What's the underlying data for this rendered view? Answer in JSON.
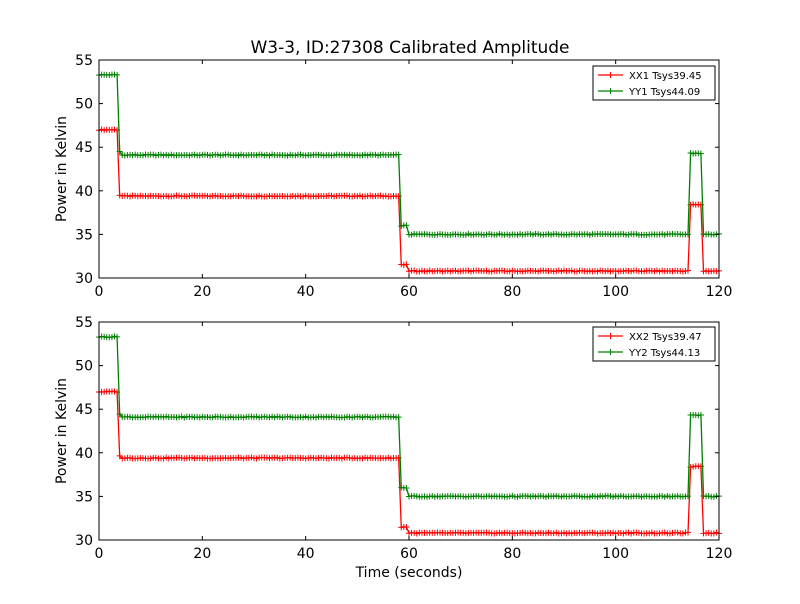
{
  "page": {
    "title": "W3-3, ID:27308 Calibrated Amplitude"
  },
  "chart_data": [
    {
      "type": "line",
      "title": "W3-3, ID:27308 Calibrated Amplitude",
      "xlabel": "",
      "ylabel": "Power in Kelvin",
      "xlim": [
        0,
        120
      ],
      "ylim": [
        30,
        55
      ],
      "xticks": [
        0,
        20,
        40,
        60,
        80,
        100,
        120
      ],
      "yticks": [
        30,
        35,
        40,
        45,
        50,
        55
      ],
      "grid": false,
      "legend_position": "top-right",
      "series": [
        {
          "name": "XX1 Tsys39.45",
          "color": "#ff0000",
          "marker": "+",
          "segments": [
            {
              "x_start": 0,
              "x_end": 3.5,
              "y": 47.0
            },
            {
              "x_start": 4.0,
              "x_end": 4.0,
              "y": 39.5
            },
            {
              "x_start": 4.2,
              "x_end": 58.0,
              "y": 39.4
            },
            {
              "x_start": 58.5,
              "x_end": 59.5,
              "y": 31.5
            },
            {
              "x_start": 60,
              "x_end": 114,
              "y": 30.8
            },
            {
              "x_start": 114.5,
              "x_end": 116.5,
              "y": 38.4
            },
            {
              "x_start": 117,
              "x_end": 120,
              "y": 30.8
            }
          ]
        },
        {
          "name": "YY1 Tsys44.09",
          "color": "#008000",
          "marker": "+",
          "segments": [
            {
              "x_start": 0,
              "x_end": 3.5,
              "y": 53.3
            },
            {
              "x_start": 4.0,
              "x_end": 4.0,
              "y": 44.5
            },
            {
              "x_start": 4.2,
              "x_end": 58.0,
              "y": 44.1
            },
            {
              "x_start": 58.5,
              "x_end": 59.5,
              "y": 36.0
            },
            {
              "x_start": 60,
              "x_end": 114,
              "y": 35.0
            },
            {
              "x_start": 114.5,
              "x_end": 116.5,
              "y": 44.3
            },
            {
              "x_start": 117,
              "x_end": 120,
              "y": 35.0
            }
          ]
        }
      ]
    },
    {
      "type": "line",
      "title": "",
      "xlabel": "Time (seconds)",
      "ylabel": "Power in Kelvin",
      "xlim": [
        0,
        120
      ],
      "ylim": [
        30,
        55
      ],
      "xticks": [
        0,
        20,
        40,
        60,
        80,
        100,
        120
      ],
      "yticks": [
        30,
        35,
        40,
        45,
        50,
        55
      ],
      "grid": false,
      "legend_position": "top-right",
      "series": [
        {
          "name": "XX2 Tsys39.47",
          "color": "#ff0000",
          "marker": "+",
          "segments": [
            {
              "x_start": 0,
              "x_end": 3.5,
              "y": 47.0
            },
            {
              "x_start": 4.0,
              "x_end": 4.0,
              "y": 39.6
            },
            {
              "x_start": 4.2,
              "x_end": 58.0,
              "y": 39.4
            },
            {
              "x_start": 58.5,
              "x_end": 59.5,
              "y": 31.5
            },
            {
              "x_start": 60,
              "x_end": 114,
              "y": 30.8
            },
            {
              "x_start": 114.5,
              "x_end": 116.5,
              "y": 38.4
            },
            {
              "x_start": 117,
              "x_end": 120,
              "y": 30.8
            }
          ]
        },
        {
          "name": "YY2 Tsys44.13",
          "color": "#008000",
          "marker": "+",
          "segments": [
            {
              "x_start": 0,
              "x_end": 3.5,
              "y": 53.3
            },
            {
              "x_start": 4.0,
              "x_end": 4.0,
              "y": 44.5
            },
            {
              "x_start": 4.2,
              "x_end": 58.0,
              "y": 44.1
            },
            {
              "x_start": 58.5,
              "x_end": 59.5,
              "y": 36.0
            },
            {
              "x_start": 60,
              "x_end": 114,
              "y": 35.0
            },
            {
              "x_start": 114.5,
              "x_end": 116.5,
              "y": 44.3
            },
            {
              "x_start": 117,
              "x_end": 120,
              "y": 35.0
            }
          ]
        }
      ]
    }
  ]
}
